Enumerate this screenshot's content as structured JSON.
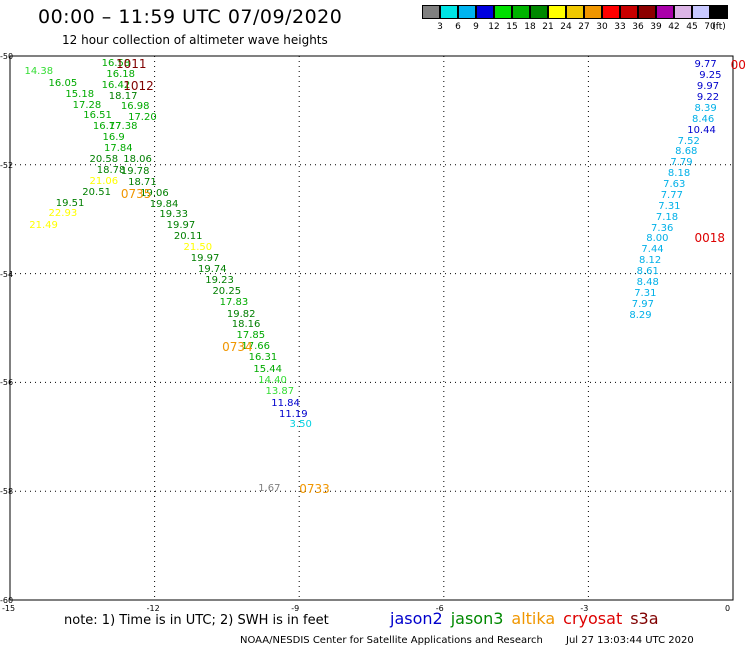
{
  "title": "00:00 – 11:59 UTC 07/09/2020",
  "subtitle": "12 hour collection of altimeter wave heights",
  "legend": {
    "colors": [
      "#808080",
      "#00e5e5",
      "#00b4f0",
      "#0000e0",
      "#00e000",
      "#00b400",
      "#008800",
      "#ffff00",
      "#f0c800",
      "#f09600",
      "#ff0000",
      "#c80000",
      "#8c0000",
      "#aa00aa",
      "#dcb4e6",
      "#c8c8ff",
      "#000000"
    ],
    "labels": [
      "3",
      "6",
      "9",
      "12",
      "15",
      "18",
      "21",
      "24",
      "27",
      "30",
      "33",
      "36",
      "39",
      "42",
      "45",
      "70",
      "(ft)"
    ]
  },
  "axes": {
    "lon_ticks": [
      "-15",
      "-12",
      "-9",
      "-6",
      "-3",
      "0"
    ],
    "lat_ticks": [
      "-50",
      "-52",
      "-54",
      "-56",
      "-58",
      "-60"
    ]
  },
  "swh_colors": {
    "lt3": "#808080",
    "lt6": "#00d0e0",
    "lt9": "#00b0e8",
    "lt12": "#0000cc",
    "lt15": "#33dd33",
    "lt18": "#00aa00",
    "lt21": "#007f00",
    "lt24": "#ffff00"
  },
  "time_colors": {
    "jason3": "#800000",
    "altika": "#f09600",
    "cryosat": "#dd0000"
  },
  "tracks": [
    {
      "satellite": "altika-track-1",
      "points": [
        {
          "lon": -14.7,
          "lat": -50.2,
          "v": "14.38"
        },
        {
          "lon": -14.2,
          "lat": -50.42,
          "v": "16.05"
        },
        {
          "lon": -13.85,
          "lat": -50.62,
          "v": "15.18"
        },
        {
          "lon": -13.7,
          "lat": -50.82,
          "v": "17.28"
        },
        {
          "lon": -13.48,
          "lat": -51.02,
          "v": "16.51"
        },
        {
          "lon": -13.28,
          "lat": -51.22,
          "v": "16.77"
        },
        {
          "lon": -12.95,
          "lat": -51.22,
          "v": "17.38"
        },
        {
          "lon": -13.08,
          "lat": -51.42,
          "v": "16.9"
        },
        {
          "lon": -13.05,
          "lat": -51.62,
          "v": "17.84"
        },
        {
          "lon": -13.35,
          "lat": -51.82,
          "v": "20.58"
        },
        {
          "lon": -12.65,
          "lat": -51.82,
          "v": "18.06"
        },
        {
          "lon": -13.2,
          "lat": -52.02,
          "v": "18.78"
        },
        {
          "lon": -12.7,
          "lat": -52.04,
          "v": "19.78"
        },
        {
          "lon": -13.35,
          "lat": -52.22,
          "v": "21.06"
        },
        {
          "lon": -12.55,
          "lat": -52.24,
          "v": "18.71"
        },
        {
          "lon": -13.5,
          "lat": -52.42,
          "v": "20.51"
        },
        {
          "lon": -12.3,
          "lat": -52.44,
          "v": "19.06"
        },
        {
          "lon": -14.05,
          "lat": -52.62,
          "v": "19.51"
        },
        {
          "lon": -12.1,
          "lat": -52.64,
          "v": "19.84"
        },
        {
          "lon": -14.2,
          "lat": -52.82,
          "v": "22.93"
        },
        {
          "lon": -11.9,
          "lat": -52.84,
          "v": "19.33"
        },
        {
          "lon": -14.6,
          "lat": -53.04,
          "v": "21.49"
        },
        {
          "lon": -11.75,
          "lat": -53.04,
          "v": "19.97"
        },
        {
          "lon": -11.6,
          "lat": -53.24,
          "v": "20.11"
        },
        {
          "lon": -11.4,
          "lat": -53.44,
          "v": "21.50"
        },
        {
          "lon": -11.25,
          "lat": -53.64,
          "v": "19.97"
        },
        {
          "lon": -11.1,
          "lat": -53.84,
          "v": "19.74"
        },
        {
          "lon": -10.95,
          "lat": -54.04,
          "v": "19.23"
        },
        {
          "lon": -10.8,
          "lat": -54.24,
          "v": "20.25"
        },
        {
          "lon": -10.65,
          "lat": -54.44,
          "v": "17.83"
        },
        {
          "lon": -10.5,
          "lat": -54.66,
          "v": "19.82"
        },
        {
          "lon": -10.4,
          "lat": -54.86,
          "v": "18.16"
        },
        {
          "lon": -10.3,
          "lat": -55.06,
          "v": "17.85"
        },
        {
          "lon": -10.2,
          "lat": -55.26,
          "v": "17.66"
        },
        {
          "lon": -10.05,
          "lat": -55.46,
          "v": "16.31"
        },
        {
          "lon": -9.95,
          "lat": -55.68,
          "v": "15.44"
        },
        {
          "lon": -9.85,
          "lat": -55.88,
          "v": "14.40"
        },
        {
          "lon": -9.7,
          "lat": -56.08,
          "v": "13.87"
        },
        {
          "lon": -9.58,
          "lat": -56.3,
          "v": "11.84"
        },
        {
          "lon": -9.42,
          "lat": -56.5,
          "v": "11.19"
        },
        {
          "lon": -9.2,
          "lat": -56.7,
          "v": "3.50"
        },
        {
          "lon": -9.85,
          "lat": -57.86,
          "v": "1.67"
        }
      ]
    },
    {
      "satellite": "jason3-track-1",
      "points": [
        {
          "lon": -13.1,
          "lat": -50.06,
          "v": "16.58"
        },
        {
          "lon": -13.0,
          "lat": -50.26,
          "v": "16.18"
        },
        {
          "lon": -13.1,
          "lat": -50.46,
          "v": "16.42"
        },
        {
          "lon": -12.95,
          "lat": -50.66,
          "v": "18.17"
        },
        {
          "lon": -12.7,
          "lat": -50.84,
          "v": "16.98"
        },
        {
          "lon": -12.55,
          "lat": -51.04,
          "v": "17.20"
        }
      ]
    },
    {
      "satellite": "cryosat-track-1",
      "points": [
        {
          "lon": -0.8,
          "lat": -50.08,
          "v": "9.77"
        },
        {
          "lon": -0.7,
          "lat": -50.28,
          "v": "9.25"
        },
        {
          "lon": -0.75,
          "lat": -50.48,
          "v": "9.97"
        },
        {
          "lon": -0.75,
          "lat": -50.68,
          "v": "9.22"
        },
        {
          "lon": -0.8,
          "lat": -50.88,
          "v": "8.39"
        },
        {
          "lon": -0.85,
          "lat": -51.08,
          "v": "8.46"
        },
        {
          "lon": -0.95,
          "lat": -51.28,
          "v": "10.44"
        },
        {
          "lon": -1.15,
          "lat": -51.48,
          "v": "7.52"
        },
        {
          "lon": -1.2,
          "lat": -51.68,
          "v": "8.68"
        },
        {
          "lon": -1.3,
          "lat": -51.88,
          "v": "7.79"
        },
        {
          "lon": -1.35,
          "lat": -52.08,
          "v": "8.18"
        },
        {
          "lon": -1.45,
          "lat": -52.28,
          "v": "7.63"
        },
        {
          "lon": -1.5,
          "lat": -52.48,
          "v": "7.77"
        },
        {
          "lon": -1.55,
          "lat": -52.68,
          "v": "7.31"
        },
        {
          "lon": -1.6,
          "lat": -52.88,
          "v": "7.18"
        },
        {
          "lon": -1.7,
          "lat": -53.08,
          "v": "7.36"
        },
        {
          "lon": -1.8,
          "lat": -53.28,
          "v": "8.00"
        },
        {
          "lon": -1.9,
          "lat": -53.48,
          "v": "7.44"
        },
        {
          "lon": -1.95,
          "lat": -53.68,
          "v": "8.12"
        },
        {
          "lon": -2.0,
          "lat": -53.88,
          "v": "8.61"
        },
        {
          "lon": -2.0,
          "lat": -54.08,
          "v": "8.48"
        },
        {
          "lon": -2.05,
          "lat": -54.28,
          "v": "7.31"
        },
        {
          "lon": -2.1,
          "lat": -54.48,
          "v": "7.97"
        },
        {
          "lon": -2.15,
          "lat": -54.68,
          "v": "8.29"
        }
      ]
    }
  ],
  "times": [
    {
      "lon": -12.8,
      "lat": -50.06,
      "v": "1011",
      "sat": "jason3"
    },
    {
      "lon": -12.65,
      "lat": -50.46,
      "v": "1012",
      "sat": "jason3"
    },
    {
      "lon": -12.7,
      "lat": -52.44,
      "v": "0735",
      "sat": "altika"
    },
    {
      "lon": -10.6,
      "lat": -55.26,
      "v": "0734",
      "sat": "altika"
    },
    {
      "lon": -9.0,
      "lat": -57.86,
      "v": "0733",
      "sat": "altika"
    },
    {
      "lon": -0.8,
      "lat": -53.26,
      "v": "0018",
      "sat": "cryosat"
    },
    {
      "lon": -0.05,
      "lat": -50.08,
      "v": "00",
      "sat": "cryosat"
    }
  ],
  "note": "note:  1) Time is in UTC;  2) SWH is in feet",
  "satellites": [
    {
      "name": "jason2",
      "color": "#0000cc"
    },
    {
      "name": "jason3",
      "color": "#008800"
    },
    {
      "name": "altika",
      "color": "#f09600"
    },
    {
      "name": "cryosat",
      "color": "#dd0000"
    },
    {
      "name": "s3a",
      "color": "#800000"
    }
  ],
  "credit": "NOAA/NESDIS Center for Satellite Applications and Research",
  "timestamp": "Jul 27 13:03:44 UTC 2020"
}
